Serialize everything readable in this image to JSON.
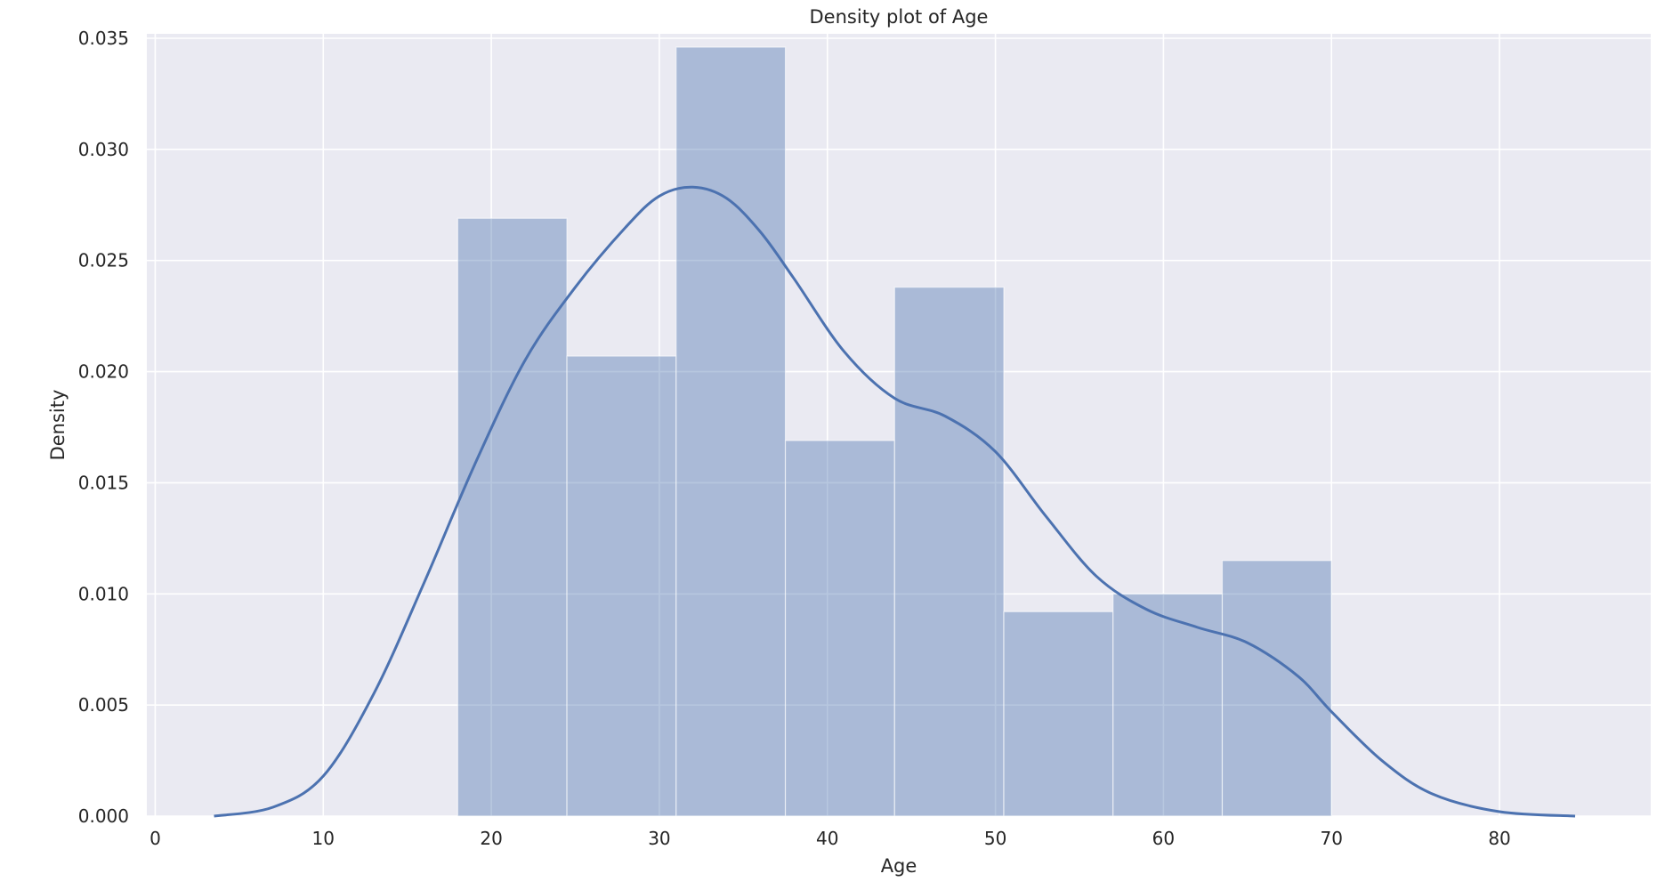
{
  "chart_data": {
    "type": "histogram",
    "title": "Density plot of Age",
    "xlabel": "Age",
    "ylabel": "Density",
    "xlim": [
      -0.5,
      89
    ],
    "ylim": [
      0,
      0.0352
    ],
    "xticks": [
      0,
      10,
      20,
      30,
      40,
      50,
      60,
      70,
      80
    ],
    "yticks": [
      0.0,
      0.005,
      0.01,
      0.015,
      0.02,
      0.025,
      0.03,
      0.035
    ],
    "ytick_labels": [
      "0.000",
      "0.005",
      "0.010",
      "0.015",
      "0.020",
      "0.025",
      "0.030",
      "0.035"
    ],
    "grid": true,
    "bins": [
      {
        "x0": 18.0,
        "x1": 24.5,
        "density": 0.0269
      },
      {
        "x0": 24.5,
        "x1": 31.0,
        "density": 0.0207
      },
      {
        "x0": 31.0,
        "x1": 37.5,
        "density": 0.0346
      },
      {
        "x0": 37.5,
        "x1": 44.0,
        "density": 0.0169
      },
      {
        "x0": 44.0,
        "x1": 50.5,
        "density": 0.0238
      },
      {
        "x0": 50.5,
        "x1": 57.0,
        "density": 0.0092
      },
      {
        "x0": 57.0,
        "x1": 63.5,
        "density": 0.01
      },
      {
        "x0": 63.5,
        "x1": 70.0,
        "density": 0.0115
      }
    ],
    "kde": {
      "x": [
        3.5,
        7,
        10,
        13,
        16,
        19,
        22,
        25,
        28,
        30,
        32,
        34,
        36,
        38,
        41,
        44,
        47,
        50,
        53,
        56,
        59,
        62,
        65,
        68,
        70,
        73,
        76,
        80,
        84.5
      ],
      "y": [
        0.0,
        0.0004,
        0.0018,
        0.0055,
        0.0105,
        0.0158,
        0.0205,
        0.0238,
        0.0265,
        0.0279,
        0.0283,
        0.0278,
        0.0263,
        0.0242,
        0.0209,
        0.0188,
        0.018,
        0.0164,
        0.0135,
        0.0108,
        0.0093,
        0.0085,
        0.0078,
        0.0063,
        0.0047,
        0.0025,
        0.001,
        0.0002,
        0.0
      ]
    },
    "colors": {
      "background": "#eaeaf2",
      "grid": "#ffffff",
      "bar": "#4c72b0",
      "kde": "#4c72b0"
    }
  }
}
